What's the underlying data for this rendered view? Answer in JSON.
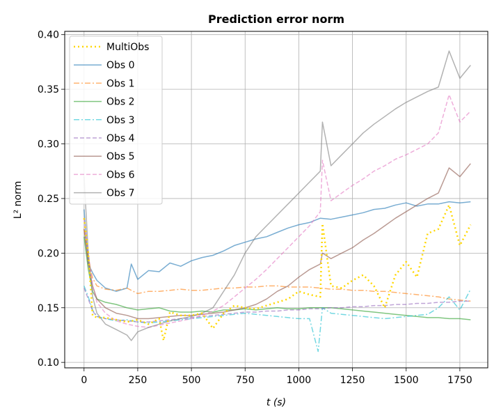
{
  "chart_data": {
    "type": "line",
    "title": "Prediction error norm",
    "xlabel": "t (s)",
    "ylabel": "L² norm",
    "xlim": [
      -90,
      1880
    ],
    "ylim": [
      0.095,
      0.403
    ],
    "xticks": [
      0,
      250,
      500,
      750,
      1000,
      1250,
      1500,
      1750
    ],
    "xtick_labels": [
      "0",
      "250",
      "500",
      "750",
      "1000",
      "1250",
      "1500",
      "1750"
    ],
    "yticks": [
      0.1,
      0.15,
      0.2,
      0.25,
      0.3,
      0.35,
      0.4
    ],
    "ytick_labels": [
      "0.10",
      "0.15",
      "0.20",
      "0.25",
      "0.30",
      "0.35",
      "0.40"
    ],
    "grid": true,
    "legend_position": "top-left",
    "series": [
      {
        "name": "MultiObs",
        "color": "#ffd700",
        "style": "dotted",
        "width": 2.5,
        "opacity": 1,
        "x": [
          0,
          20,
          40,
          60,
          100,
          150,
          200,
          250,
          300,
          350,
          370,
          400,
          450,
          500,
          550,
          600,
          650,
          700,
          750,
          800,
          850,
          900,
          950,
          1000,
          1050,
          1100,
          1110,
          1150,
          1200,
          1250,
          1300,
          1350,
          1400,
          1450,
          1500,
          1550,
          1600,
          1650,
          1700,
          1750,
          1800
        ],
        "y": [
          0.232,
          0.2,
          0.143,
          0.141,
          0.141,
          0.139,
          0.137,
          0.139,
          0.135,
          0.14,
          0.12,
          0.146,
          0.143,
          0.143,
          0.145,
          0.131,
          0.145,
          0.152,
          0.15,
          0.149,
          0.152,
          0.155,
          0.158,
          0.165,
          0.162,
          0.16,
          0.227,
          0.17,
          0.168,
          0.175,
          0.18,
          0.17,
          0.15,
          0.18,
          0.192,
          0.178,
          0.218,
          0.222,
          0.244,
          0.207,
          0.226
        ]
      },
      {
        "name": "Obs 0",
        "color": "#1f77b4",
        "style": "solid",
        "width": 1.5,
        "opacity": 0.6,
        "x": [
          0,
          20,
          40,
          60,
          100,
          150,
          200,
          220,
          250,
          300,
          350,
          400,
          450,
          500,
          550,
          600,
          650,
          700,
          750,
          800,
          850,
          900,
          950,
          1000,
          1050,
          1100,
          1150,
          1200,
          1250,
          1300,
          1350,
          1400,
          1450,
          1500,
          1550,
          1600,
          1650,
          1700,
          1750,
          1800
        ],
        "y": [
          0.24,
          0.19,
          0.182,
          0.175,
          0.168,
          0.165,
          0.168,
          0.19,
          0.176,
          0.184,
          0.183,
          0.191,
          0.188,
          0.193,
          0.196,
          0.198,
          0.202,
          0.207,
          0.21,
          0.213,
          0.215,
          0.219,
          0.223,
          0.226,
          0.228,
          0.232,
          0.231,
          0.233,
          0.235,
          0.237,
          0.24,
          0.241,
          0.244,
          0.246,
          0.243,
          0.245,
          0.245,
          0.247,
          0.246,
          0.247
        ]
      },
      {
        "name": "Obs 1",
        "color": "#ff7f0e",
        "style": "dashdot",
        "width": 1.5,
        "opacity": 0.6,
        "x": [
          0,
          20,
          40,
          60,
          100,
          150,
          200,
          250,
          300,
          350,
          400,
          450,
          500,
          550,
          600,
          650,
          700,
          750,
          800,
          850,
          900,
          950,
          1000,
          1050,
          1100,
          1150,
          1200,
          1250,
          1300,
          1350,
          1400,
          1450,
          1500,
          1550,
          1600,
          1650,
          1700,
          1750,
          1800
        ],
        "y": [
          0.222,
          0.195,
          0.177,
          0.17,
          0.167,
          0.166,
          0.168,
          0.163,
          0.165,
          0.165,
          0.166,
          0.167,
          0.166,
          0.166,
          0.167,
          0.168,
          0.168,
          0.169,
          0.169,
          0.17,
          0.17,
          0.169,
          0.169,
          0.169,
          0.168,
          0.167,
          0.167,
          0.166,
          0.166,
          0.165,
          0.165,
          0.164,
          0.163,
          0.162,
          0.161,
          0.16,
          0.158,
          0.157,
          0.156
        ]
      },
      {
        "name": "Obs 2",
        "color": "#2ca02c",
        "style": "solid",
        "width": 1.5,
        "opacity": 0.6,
        "x": [
          0,
          20,
          40,
          60,
          100,
          150,
          200,
          250,
          300,
          350,
          400,
          450,
          500,
          550,
          600,
          650,
          700,
          750,
          800,
          850,
          900,
          950,
          1000,
          1050,
          1100,
          1150,
          1200,
          1250,
          1300,
          1350,
          1400,
          1450,
          1500,
          1550,
          1600,
          1650,
          1700,
          1750,
          1800
        ],
        "y": [
          0.215,
          0.185,
          0.165,
          0.158,
          0.155,
          0.153,
          0.15,
          0.148,
          0.149,
          0.15,
          0.147,
          0.146,
          0.146,
          0.147,
          0.146,
          0.148,
          0.148,
          0.149,
          0.148,
          0.149,
          0.15,
          0.149,
          0.149,
          0.15,
          0.15,
          0.15,
          0.149,
          0.148,
          0.147,
          0.146,
          0.145,
          0.144,
          0.143,
          0.142,
          0.141,
          0.141,
          0.14,
          0.14,
          0.139
        ]
      },
      {
        "name": "Obs 3",
        "color": "#17becf",
        "style": "dashdot",
        "width": 1.5,
        "opacity": 0.6,
        "x": [
          0,
          20,
          40,
          60,
          100,
          150,
          200,
          250,
          300,
          350,
          400,
          450,
          500,
          550,
          600,
          650,
          700,
          750,
          800,
          850,
          900,
          950,
          1000,
          1050,
          1090,
          1110,
          1150,
          1200,
          1250,
          1300,
          1350,
          1400,
          1450,
          1500,
          1550,
          1600,
          1650,
          1700,
          1750,
          1800
        ],
        "y": [
          0.17,
          0.16,
          0.148,
          0.142,
          0.14,
          0.138,
          0.139,
          0.137,
          0.136,
          0.137,
          0.138,
          0.139,
          0.14,
          0.141,
          0.142,
          0.143,
          0.144,
          0.145,
          0.144,
          0.143,
          0.142,
          0.141,
          0.14,
          0.14,
          0.11,
          0.15,
          0.145,
          0.144,
          0.143,
          0.142,
          0.141,
          0.14,
          0.141,
          0.142,
          0.143,
          0.144,
          0.15,
          0.16,
          0.148,
          0.167
        ]
      },
      {
        "name": "Obs 4",
        "color": "#9467bd",
        "style": "dashed",
        "width": 1.5,
        "opacity": 0.6,
        "x": [
          0,
          20,
          40,
          60,
          100,
          150,
          200,
          250,
          300,
          350,
          400,
          450,
          500,
          550,
          600,
          650,
          700,
          750,
          800,
          850,
          900,
          950,
          1000,
          1050,
          1100,
          1150,
          1200,
          1250,
          1300,
          1350,
          1400,
          1450,
          1500,
          1550,
          1600,
          1650,
          1700,
          1750,
          1800
        ],
        "y": [
          0.168,
          0.158,
          0.147,
          0.142,
          0.14,
          0.139,
          0.138,
          0.137,
          0.137,
          0.138,
          0.139,
          0.14,
          0.141,
          0.142,
          0.143,
          0.144,
          0.145,
          0.146,
          0.146,
          0.147,
          0.147,
          0.148,
          0.148,
          0.149,
          0.149,
          0.15,
          0.15,
          0.151,
          0.151,
          0.152,
          0.152,
          0.153,
          0.153,
          0.154,
          0.154,
          0.155,
          0.155,
          0.156,
          0.156
        ]
      },
      {
        "name": "Obs 5",
        "color": "#8c564b",
        "style": "solid",
        "width": 1.5,
        "opacity": 0.6,
        "x": [
          0,
          20,
          40,
          60,
          100,
          150,
          200,
          250,
          300,
          350,
          400,
          450,
          500,
          550,
          600,
          650,
          700,
          750,
          800,
          850,
          900,
          950,
          1000,
          1050,
          1100,
          1110,
          1150,
          1200,
          1250,
          1300,
          1350,
          1400,
          1450,
          1500,
          1550,
          1600,
          1650,
          1700,
          1750,
          1800
        ],
        "y": [
          0.222,
          0.19,
          0.17,
          0.158,
          0.15,
          0.145,
          0.143,
          0.14,
          0.14,
          0.141,
          0.142,
          0.143,
          0.143,
          0.144,
          0.145,
          0.146,
          0.148,
          0.15,
          0.153,
          0.158,
          0.165,
          0.17,
          0.178,
          0.185,
          0.19,
          0.2,
          0.195,
          0.2,
          0.205,
          0.212,
          0.218,
          0.225,
          0.232,
          0.238,
          0.244,
          0.25,
          0.255,
          0.278,
          0.27,
          0.282
        ]
      },
      {
        "name": "Obs 6",
        "color": "#e377c2",
        "style": "dashed",
        "width": 1.5,
        "opacity": 0.6,
        "x": [
          0,
          20,
          40,
          60,
          100,
          150,
          200,
          250,
          300,
          350,
          400,
          450,
          500,
          550,
          600,
          650,
          700,
          750,
          800,
          850,
          900,
          950,
          1000,
          1050,
          1100,
          1110,
          1150,
          1200,
          1250,
          1300,
          1350,
          1400,
          1450,
          1500,
          1550,
          1600,
          1650,
          1700,
          1750,
          1800
        ],
        "y": [
          0.232,
          0.2,
          0.17,
          0.155,
          0.145,
          0.138,
          0.135,
          0.133,
          0.132,
          0.134,
          0.136,
          0.138,
          0.14,
          0.143,
          0.147,
          0.152,
          0.16,
          0.168,
          0.176,
          0.185,
          0.195,
          0.205,
          0.215,
          0.225,
          0.238,
          0.285,
          0.248,
          0.255,
          0.262,
          0.268,
          0.275,
          0.28,
          0.286,
          0.29,
          0.295,
          0.3,
          0.31,
          0.345,
          0.32,
          0.33
        ]
      },
      {
        "name": "Obs 7",
        "color": "#7f7f7f",
        "style": "solid",
        "width": 1.5,
        "opacity": 0.6,
        "x": [
          0,
          20,
          40,
          60,
          100,
          150,
          200,
          220,
          250,
          300,
          350,
          400,
          450,
          500,
          550,
          600,
          650,
          700,
          750,
          800,
          850,
          900,
          950,
          1000,
          1050,
          1100,
          1110,
          1150,
          1200,
          1250,
          1300,
          1350,
          1400,
          1450,
          1500,
          1550,
          1600,
          1650,
          1700,
          1750,
          1800
        ],
        "y": [
          0.27,
          0.2,
          0.16,
          0.145,
          0.135,
          0.13,
          0.125,
          0.12,
          0.128,
          0.132,
          0.135,
          0.138,
          0.14,
          0.142,
          0.145,
          0.15,
          0.165,
          0.18,
          0.2,
          0.215,
          0.225,
          0.235,
          0.245,
          0.255,
          0.265,
          0.275,
          0.32,
          0.28,
          0.29,
          0.3,
          0.31,
          0.318,
          0.325,
          0.332,
          0.338,
          0.343,
          0.348,
          0.352,
          0.385,
          0.36,
          0.372
        ]
      }
    ]
  }
}
